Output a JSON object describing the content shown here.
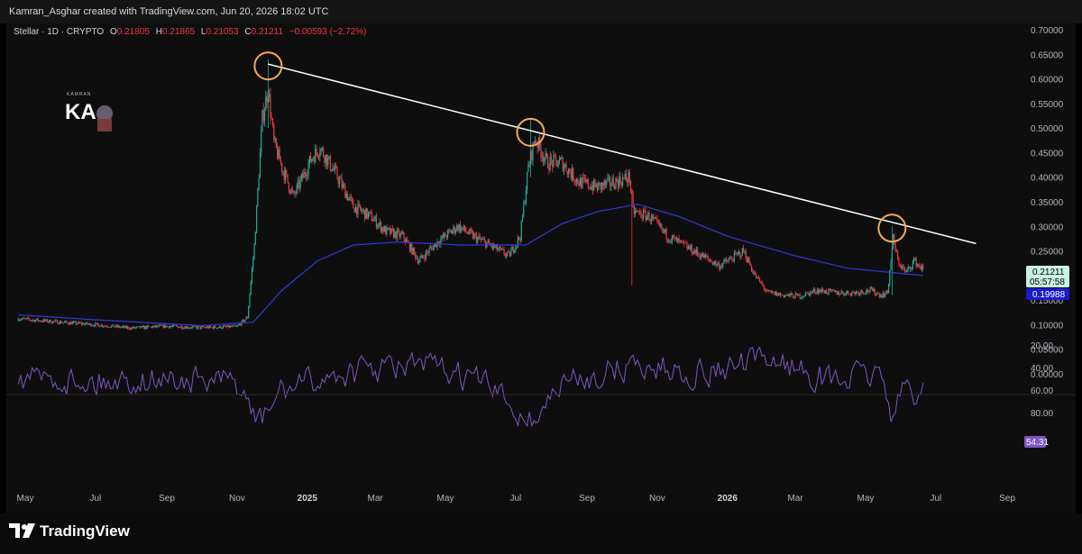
{
  "header": {
    "attribution": "Kamran_Asghar created with TradingView.com, Jun 20, 2026 18:02 UTC"
  },
  "legend": {
    "symbol": "Stellar · 1D · CRYPTO",
    "o_label": "O",
    "o_value": "0.21805",
    "h_label": "H",
    "h_value": "0.21865",
    "l_label": "L",
    "l_value": "0.21053",
    "c_label": "C",
    "c_value": "0.21211",
    "change": "−0.00593 (−2.72%)"
  },
  "logo": {
    "text": "KAMRAN",
    "initials": "KA",
    "icon": "author-logo-icon"
  },
  "price_labels": {
    "last_price": "0.21211",
    "countdown": "05:57:58",
    "ma_value": "0.19988",
    "rsi_value": "54.31"
  },
  "footer": {
    "brand": "TradingView",
    "icon": "tradingview-logo-icon"
  },
  "colors": {
    "background": "#0e0e0e",
    "up": "#22ab94",
    "down": "#f23645",
    "ma": "#2f3ad6",
    "trendline": "#ffffff",
    "highlight_circle": "#f7a85a",
    "rsi": "#7e57c2",
    "last_price_bg": "#c8f0e5",
    "ma_label_bg": "#1a1acf",
    "rsi_label_bg": "#7e57c2"
  },
  "chart_data": {
    "type": "candlestick",
    "symbol": "Stellar",
    "interval": "1D",
    "x_axis": {
      "ticks": [
        "May",
        "Jul",
        "Sep",
        "Nov",
        "2025",
        "Mar",
        "May",
        "Jul",
        "Sep",
        "Nov",
        "2026",
        "Mar",
        "May",
        "Jul",
        "Sep"
      ],
      "bold_ticks": [
        "2025",
        "2026"
      ]
    },
    "price_axis": {
      "ticks": [
        "0.70000",
        "0.65000",
        "0.60000",
        "0.55000",
        "0.50000",
        "0.45000",
        "0.40000",
        "0.35000",
        "0.30000",
        "0.25000",
        "0.20000",
        "0.15000",
        "0.10000",
        "0.05000",
        "0.00000"
      ],
      "ylim": [
        0,
        0.7
      ]
    },
    "rsi_axis": {
      "ticks": [
        "80.00",
        "60.00",
        "40.00",
        "20.00"
      ],
      "ylim": [
        10,
        95
      ]
    },
    "price_path": [
      {
        "t": "2024-04-25",
        "v": 0.112
      },
      {
        "t": "2024-06-01",
        "v": 0.105
      },
      {
        "t": "2024-07-01",
        "v": 0.1
      },
      {
        "t": "2024-08-01",
        "v": 0.093
      },
      {
        "t": "2024-09-01",
        "v": 0.097
      },
      {
        "t": "2024-10-01",
        "v": 0.094
      },
      {
        "t": "2024-11-01",
        "v": 0.096
      },
      {
        "t": "2024-11-10",
        "v": 0.115
      },
      {
        "t": "2024-11-16",
        "v": 0.26
      },
      {
        "t": "2024-11-23",
        "v": 0.52
      },
      {
        "t": "2024-11-28",
        "v": 0.58
      },
      {
        "t": "2024-12-03",
        "v": 0.47
      },
      {
        "t": "2024-12-10",
        "v": 0.42
      },
      {
        "t": "2024-12-20",
        "v": 0.36
      },
      {
        "t": "2025-01-05",
        "v": 0.44
      },
      {
        "t": "2025-01-12",
        "v": 0.46
      },
      {
        "t": "2025-01-25",
        "v": 0.41
      },
      {
        "t": "2025-02-10",
        "v": 0.34
      },
      {
        "t": "2025-02-25",
        "v": 0.32
      },
      {
        "t": "2025-03-10",
        "v": 0.29
      },
      {
        "t": "2025-03-25",
        "v": 0.28
      },
      {
        "t": "2025-04-08",
        "v": 0.23
      },
      {
        "t": "2025-04-25",
        "v": 0.27
      },
      {
        "t": "2025-05-12",
        "v": 0.3
      },
      {
        "t": "2025-05-25",
        "v": 0.28
      },
      {
        "t": "2025-06-10",
        "v": 0.26
      },
      {
        "t": "2025-06-25",
        "v": 0.24
      },
      {
        "t": "2025-07-05",
        "v": 0.28
      },
      {
        "t": "2025-07-12",
        "v": 0.42
      },
      {
        "t": "2025-07-18",
        "v": 0.48
      },
      {
        "t": "2025-07-28",
        "v": 0.43
      },
      {
        "t": "2025-08-10",
        "v": 0.43
      },
      {
        "t": "2025-08-25",
        "v": 0.39
      },
      {
        "t": "2025-09-10",
        "v": 0.38
      },
      {
        "t": "2025-09-25",
        "v": 0.39
      },
      {
        "t": "2025-10-08",
        "v": 0.4
      },
      {
        "t": "2025-10-11",
        "v": 0.33
      },
      {
        "t": "2025-10-25",
        "v": 0.32
      },
      {
        "t": "2025-11-10",
        "v": 0.28
      },
      {
        "t": "2025-11-25",
        "v": 0.26
      },
      {
        "t": "2025-12-10",
        "v": 0.24
      },
      {
        "t": "2025-12-25",
        "v": 0.22
      },
      {
        "t": "2026-01-05",
        "v": 0.235
      },
      {
        "t": "2026-01-15",
        "v": 0.25
      },
      {
        "t": "2026-01-25",
        "v": 0.2
      },
      {
        "t": "2026-02-05",
        "v": 0.165
      },
      {
        "t": "2026-02-20",
        "v": 0.16
      },
      {
        "t": "2026-03-05",
        "v": 0.158
      },
      {
        "t": "2026-03-20",
        "v": 0.17
      },
      {
        "t": "2026-04-05",
        "v": 0.165
      },
      {
        "t": "2026-04-20",
        "v": 0.165
      },
      {
        "t": "2026-05-05",
        "v": 0.17
      },
      {
        "t": "2026-05-15",
        "v": 0.16
      },
      {
        "t": "2026-05-20",
        "v": 0.165
      },
      {
        "t": "2026-05-25",
        "v": 0.275
      },
      {
        "t": "2026-05-29",
        "v": 0.23
      },
      {
        "t": "2026-06-05",
        "v": 0.205
      },
      {
        "t": "2026-06-12",
        "v": 0.23
      },
      {
        "t": "2026-06-20",
        "v": 0.212
      }
    ],
    "spikes": [
      {
        "t": "2024-11-28",
        "high": 0.64,
        "low": 0.5
      },
      {
        "t": "2025-07-14",
        "high": 0.52,
        "low": 0.4
      },
      {
        "t": "2025-10-10",
        "high": 0.35,
        "low": 0.18
      },
      {
        "t": "2026-05-24",
        "high": 0.3,
        "low": 0.16
      }
    ],
    "moving_average": [
      {
        "t": "2024-04-25",
        "v": 0.12
      },
      {
        "t": "2024-07-01",
        "v": 0.11
      },
      {
        "t": "2024-10-01",
        "v": 0.098
      },
      {
        "t": "2024-11-15",
        "v": 0.105
      },
      {
        "t": "2024-12-10",
        "v": 0.17
      },
      {
        "t": "2025-01-10",
        "v": 0.23
      },
      {
        "t": "2025-02-10",
        "v": 0.262
      },
      {
        "t": "2025-03-20",
        "v": 0.268
      },
      {
        "t": "2025-05-15",
        "v": 0.262
      },
      {
        "t": "2025-07-10",
        "v": 0.262
      },
      {
        "t": "2025-08-10",
        "v": 0.305
      },
      {
        "t": "2025-09-10",
        "v": 0.33
      },
      {
        "t": "2025-10-15",
        "v": 0.345
      },
      {
        "t": "2025-11-20",
        "v": 0.32
      },
      {
        "t": "2026-01-01",
        "v": 0.28
      },
      {
        "t": "2026-03-01",
        "v": 0.24
      },
      {
        "t": "2026-04-15",
        "v": 0.215
      },
      {
        "t": "2026-06-20",
        "v": 0.19988
      }
    ],
    "trendline": [
      {
        "t": "2024-11-28",
        "v": 0.63
      },
      {
        "t": "2026-08-05",
        "v": 0.265
      }
    ],
    "highlighted_peaks": [
      {
        "t": "2024-11-28",
        "v": 0.63
      },
      {
        "t": "2025-07-14",
        "v": 0.495
      },
      {
        "t": "2026-05-24",
        "v": 0.3
      }
    ],
    "rsi_path": [
      {
        "t": "2024-04-25",
        "v": 48
      },
      {
        "t": "2024-07-01",
        "v": 52
      },
      {
        "t": "2024-09-01",
        "v": 50
      },
      {
        "t": "2024-11-01",
        "v": 55
      },
      {
        "t": "2024-11-20",
        "v": 90
      },
      {
        "t": "2024-12-10",
        "v": 60
      },
      {
        "t": "2025-02-01",
        "v": 45
      },
      {
        "t": "2025-04-10",
        "v": 38
      },
      {
        "t": "2025-06-01",
        "v": 52
      },
      {
        "t": "2025-07-15",
        "v": 88
      },
      {
        "t": "2025-08-10",
        "v": 55
      },
      {
        "t": "2025-10-11",
        "v": 38
      },
      {
        "t": "2025-12-10",
        "v": 45
      },
      {
        "t": "2026-02-10",
        "v": 32
      },
      {
        "t": "2026-04-01",
        "v": 52
      },
      {
        "t": "2026-05-15",
        "v": 45
      },
      {
        "t": "2026-05-25",
        "v": 85
      },
      {
        "t": "2026-06-05",
        "v": 55
      },
      {
        "t": "2026-06-15",
        "v": 65
      },
      {
        "t": "2026-06-20",
        "v": 54.31
      }
    ]
  }
}
